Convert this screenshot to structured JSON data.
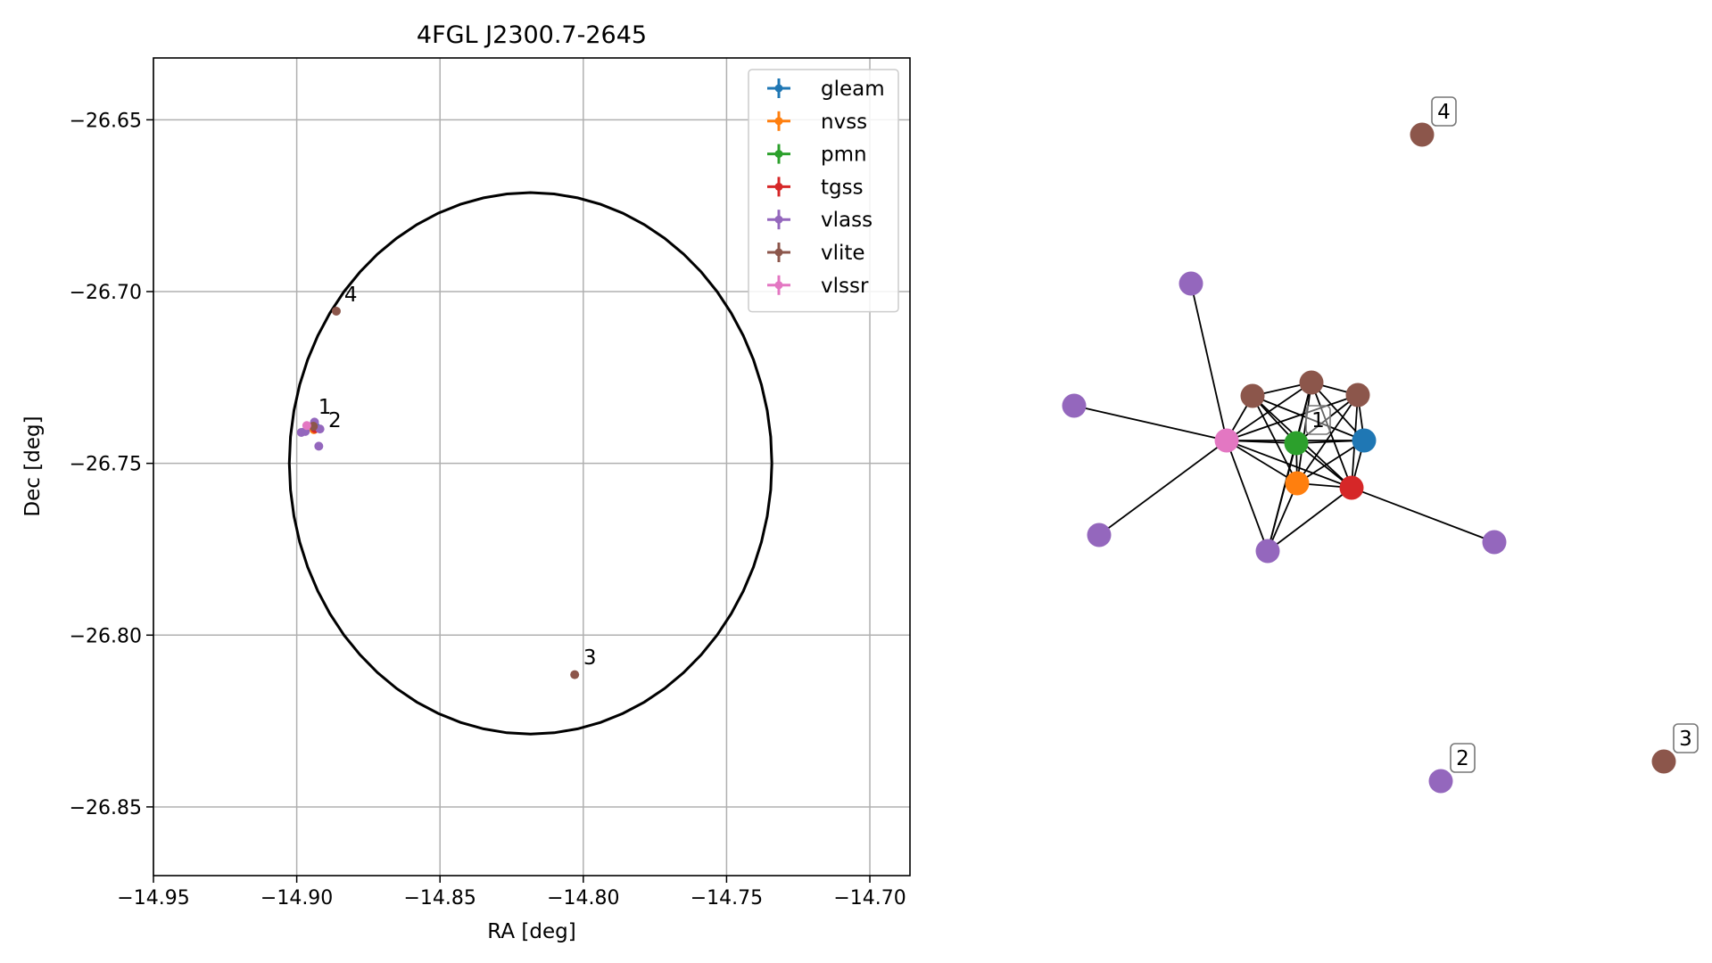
{
  "chart_data": [
    {
      "type": "scatter",
      "title": "4FGL J2300.7-2645",
      "xlabel": "RA [deg]",
      "ylabel": "Dec [deg]",
      "xlim": [
        -14.95,
        -14.686
      ],
      "ylim": [
        -26.87,
        -26.632
      ],
      "x_ticks": [
        -14.95,
        -14.9,
        -14.85,
        -14.8,
        -14.75,
        -14.7
      ],
      "x_tick_labels": [
        "−14.95",
        "−14.90",
        "−14.85",
        "−14.80",
        "−14.75",
        "−14.70"
      ],
      "y_ticks": [
        -26.65,
        -26.7,
        -26.75,
        -26.8,
        -26.85
      ],
      "y_tick_labels": [
        "−26.65",
        "−26.70",
        "−26.75",
        "−26.80",
        "−26.85"
      ],
      "grid": true,
      "legend_position": "top-right",
      "colors": {
        "gleam": "#1f77b4",
        "nvss": "#ff7f0e",
        "pmn": "#2ca02c",
        "tgss": "#d62728",
        "vlass": "#9467bd",
        "vlite": "#8c564b",
        "vlssr": "#e377c2"
      },
      "legend": [
        "gleam",
        "nvss",
        "pmn",
        "tgss",
        "vlass",
        "vlite",
        "vlssr"
      ],
      "ellipse": {
        "center": [
          -14.8184,
          -26.75
        ],
        "semi_axis_ra": 0.0842,
        "semi_axis_dec": 0.0788
      },
      "series": [
        {
          "name": "gleam",
          "points": [
            {
              "x": -14.8935,
              "y": -26.7392
            }
          ]
        },
        {
          "name": "nvss",
          "points": [
            {
              "x": -14.894,
              "y": -26.7402
            }
          ]
        },
        {
          "name": "pmn",
          "points": [
            {
              "x": -14.8938,
              "y": -26.7396
            }
          ]
        },
        {
          "name": "tgss",
          "points": [
            {
              "x": -14.8936,
              "y": -26.7399
            }
          ]
        },
        {
          "name": "vlass",
          "points": [
            {
              "x": -14.8938,
              "y": -26.738
            },
            {
              "x": -14.8984,
              "y": -26.741
            },
            {
              "x": -14.8923,
              "y": -26.745
            },
            {
              "x": -14.8919,
              "y": -26.74
            },
            {
              "x": -14.897,
              "y": -26.7407
            }
          ]
        },
        {
          "name": "vlite",
          "points": [
            {
              "x": -14.8942,
              "y": -26.7392
            },
            {
              "x": -14.8862,
              "y": -26.7057
            },
            {
              "x": -14.803,
              "y": -26.8115
            }
          ]
        },
        {
          "name": "vlssr",
          "points": [
            {
              "x": -14.8965,
              "y": -26.739
            }
          ]
        }
      ],
      "labels": [
        {
          "text": "1",
          "x": -14.8925,
          "y": -26.7355
        },
        {
          "text": "2",
          "x": -14.889,
          "y": -26.7395
        },
        {
          "text": "4",
          "x": -14.8834,
          "y": -26.7028
        },
        {
          "text": "3",
          "x": -14.8,
          "y": -26.8085
        }
      ]
    },
    {
      "type": "network",
      "colors": {
        "gleam": "#1f77b4",
        "nvss": "#ff7f0e",
        "pmn": "#2ca02c",
        "tgss": "#d62728",
        "vlass": "#9467bd",
        "vlite": "#8c564b",
        "vlssr": "#e377c2"
      },
      "nodes": [
        {
          "id": "vlssr",
          "catalog": "vlssr"
        },
        {
          "id": "pmn",
          "catalog": "pmn",
          "label": "1"
        },
        {
          "id": "gleam",
          "catalog": "gleam"
        },
        {
          "id": "nvss",
          "catalog": "nvss"
        },
        {
          "id": "tgss",
          "catalog": "tgss"
        },
        {
          "id": "vlite_a",
          "catalog": "vlite"
        },
        {
          "id": "vlite_b",
          "catalog": "vlite"
        },
        {
          "id": "vlite_c",
          "catalog": "vlite"
        },
        {
          "id": "vlass_top",
          "catalog": "vlass"
        },
        {
          "id": "vlass_left",
          "catalog": "vlass"
        },
        {
          "id": "vlass_lowleft",
          "catalog": "vlass"
        },
        {
          "id": "vlass_bottom",
          "catalog": "vlass"
        },
        {
          "id": "vlass_right",
          "catalog": "vlass"
        },
        {
          "id": "vlite_4",
          "catalog": "vlite",
          "label": "4"
        },
        {
          "id": "vlass_2",
          "catalog": "vlass",
          "label": "2"
        },
        {
          "id": "vlite_3",
          "catalog": "vlite",
          "label": "3"
        }
      ],
      "edges": [
        [
          "vlssr",
          "pmn"
        ],
        [
          "vlssr",
          "gleam"
        ],
        [
          "vlssr",
          "nvss"
        ],
        [
          "vlssr",
          "tgss"
        ],
        [
          "vlssr",
          "vlite_a"
        ],
        [
          "vlssr",
          "vlite_b"
        ],
        [
          "vlssr",
          "vlite_c"
        ],
        [
          "vlssr",
          "vlass_top"
        ],
        [
          "vlssr",
          "vlass_left"
        ],
        [
          "vlssr",
          "vlass_lowleft"
        ],
        [
          "vlssr",
          "vlass_bottom"
        ],
        [
          "pmn",
          "gleam"
        ],
        [
          "pmn",
          "nvss"
        ],
        [
          "pmn",
          "tgss"
        ],
        [
          "pmn",
          "vlite_a"
        ],
        [
          "pmn",
          "vlite_b"
        ],
        [
          "pmn",
          "vlite_c"
        ],
        [
          "gleam",
          "nvss"
        ],
        [
          "gleam",
          "tgss"
        ],
        [
          "gleam",
          "vlite_a"
        ],
        [
          "gleam",
          "vlite_b"
        ],
        [
          "gleam",
          "vlite_c"
        ],
        [
          "nvss",
          "tgss"
        ],
        [
          "nvss",
          "vlite_a"
        ],
        [
          "nvss",
          "vlite_b"
        ],
        [
          "nvss",
          "vlite_c"
        ],
        [
          "nvss",
          "vlass_bottom"
        ],
        [
          "tgss",
          "vlite_a"
        ],
        [
          "tgss",
          "vlite_b"
        ],
        [
          "tgss",
          "vlite_c"
        ],
        [
          "tgss",
          "vlass_bottom"
        ],
        [
          "tgss",
          "vlass_right"
        ],
        [
          "vlite_a",
          "vlite_b"
        ],
        [
          "vlite_b",
          "vlite_c"
        ],
        [
          "vlass_bottom",
          "pmn"
        ],
        [
          "vlass_bottom",
          "vlite_b"
        ]
      ]
    }
  ]
}
